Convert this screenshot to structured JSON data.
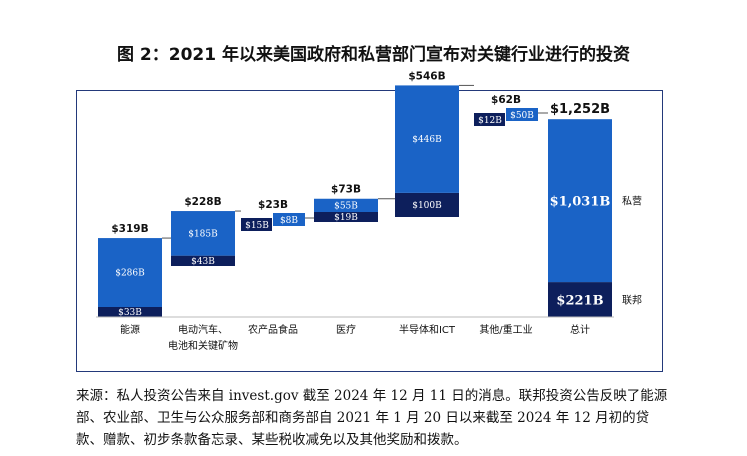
{
  "title": "图 2：2021 年以来美国政府和私营部门宣布对关键行业进行的投资",
  "source_note": "来源：私人投资公告来自 invest.gov 截至 2024 年 12 月 11 日的消息。联邦投资公告反映了能源部、农业部、卫生与公众服务部和商务部自 2021 年 1 月 20 日以来截至 2024 年 12 月初的贷款、赠款、初步条款备忘录、某些税收减免以及其他奖励和拨款。",
  "chart_data": {
    "type": "bar",
    "subtype": "stacked-waterfall",
    "unit": "$B",
    "categories": [
      [
        "能源"
      ],
      [
        "电动汽车、",
        "电池和关键矿物"
      ],
      [
        "农产品食品"
      ],
      [
        "医疗"
      ],
      [
        "半导体和ICT"
      ],
      [
        "其他/重工业"
      ],
      [
        "总计"
      ]
    ],
    "totals": [
      319,
      228,
      23,
      73,
      546,
      62,
      1252
    ],
    "total_labels": [
      "$319B",
      "$228B",
      "$23B",
      "$73B",
      "$546B",
      "$62B",
      "$1,252B"
    ],
    "series": [
      {
        "name": "联邦",
        "values": [
          33,
          43,
          15,
          19,
          100,
          12,
          221
        ],
        "labels": [
          "$33B",
          "$43B",
          "$15B",
          "$19B",
          "$100B",
          "$12B",
          "$221B"
        ]
      },
      {
        "name": "私营",
        "values": [
          286,
          185,
          8,
          55,
          446,
          50,
          1031
        ],
        "labels": [
          "$286B",
          "$185B",
          "$8B",
          "$55B",
          "$446B",
          "$50B",
          "$1,031B"
        ]
      }
    ],
    "ylim": [
      0,
      1252
    ],
    "grid": false,
    "legend": "right",
    "colors": {
      "federal": "#0d1f5c",
      "private": "#1a63c6",
      "connector": "#555555",
      "frame": "#23397a"
    }
  }
}
